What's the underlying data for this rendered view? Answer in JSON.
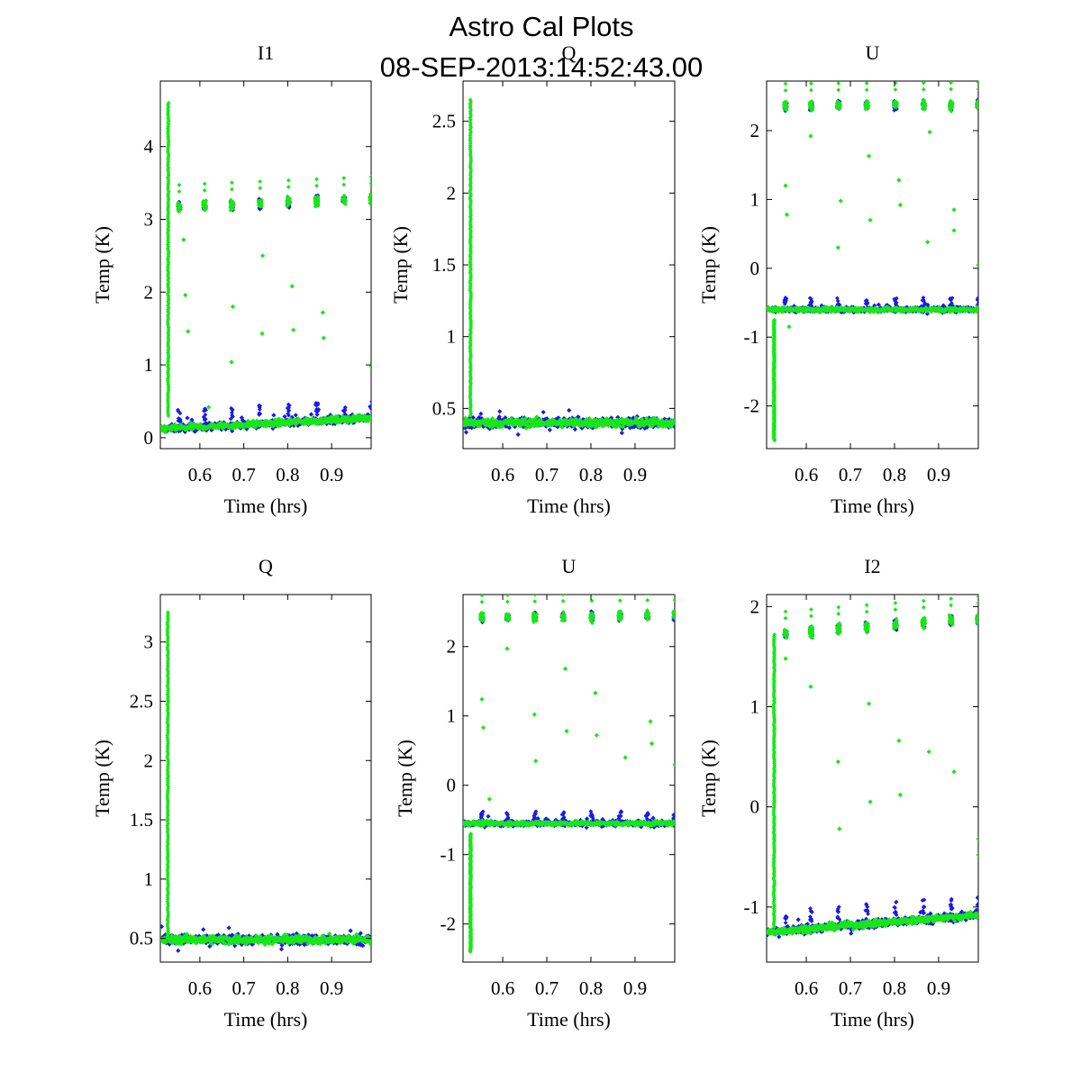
{
  "figure": {
    "title_line1": "Astro Cal Plots",
    "title_line2": "08-SEP-2013:14:52:43.00"
  },
  "colors": {
    "series_a": "#1a1ae6",
    "series_b": "#19e619"
  },
  "chart_data": [
    {
      "type": "scatter",
      "title": "I1",
      "xlabel": "Time (hrs)",
      "ylabel": "Temp (K)",
      "xlim": [
        0.51,
        0.99
      ],
      "ylim": [
        -0.15,
        4.9
      ],
      "xticks": [
        0.6,
        0.7,
        0.8,
        0.9
      ],
      "yticks": [
        0,
        1,
        2,
        3,
        4
      ],
      "grid": false,
      "baseline_start": 0.12,
      "baseline_end": 0.27,
      "noise": 0.05,
      "spike_x": 0.528,
      "spike_range": [
        0.3,
        4.6
      ],
      "cluster_level": 3.17,
      "cluster_end": 3.28,
      "cluster_times": [
        0.553,
        0.611,
        0.673,
        0.737,
        0.802,
        0.866,
        0.928,
        0.99
      ],
      "outlier_points": [
        [
          0.563,
          2.72
        ],
        [
          0.567,
          1.96
        ],
        [
          0.573,
          1.46
        ],
        [
          0.62,
          0.42
        ],
        [
          0.672,
          1.04
        ],
        [
          0.675,
          1.8
        ],
        [
          0.742,
          1.43
        ],
        [
          0.743,
          2.5
        ],
        [
          0.81,
          2.08
        ],
        [
          0.813,
          1.48
        ],
        [
          0.88,
          1.72
        ],
        [
          0.882,
          1.37
        ],
        [
          0.99,
          0.98
        ]
      ]
    },
    {
      "type": "scatter",
      "title": "Q",
      "xlabel": "Time (hrs)",
      "ylabel": "Temp (K)",
      "xlim": [
        0.51,
        0.99
      ],
      "ylim": [
        0.22,
        2.78
      ],
      "xticks": [
        0.6,
        0.7,
        0.8,
        0.9
      ],
      "yticks": [
        0.5,
        1,
        1.5,
        2,
        2.5
      ],
      "grid": false,
      "baseline_start": 0.4,
      "baseline_end": 0.4,
      "noise": 0.035,
      "spike_x": 0.527,
      "spike_range": [
        0.45,
        2.65
      ],
      "cluster_level": null,
      "cluster_end": null,
      "cluster_times": [],
      "outlier_points": []
    },
    {
      "type": "scatter",
      "title": "U",
      "xlabel": "Time (hrs)",
      "ylabel": "Temp (K)",
      "xlim": [
        0.51,
        0.99
      ],
      "ylim": [
        -2.62,
        2.72
      ],
      "xticks": [
        0.6,
        0.7,
        0.8,
        0.9
      ],
      "yticks": [
        -2,
        -1,
        0,
        1,
        2
      ],
      "grid": false,
      "baseline_start": -0.6,
      "baseline_end": -0.6,
      "noise": 0.035,
      "spike_x": 0.527,
      "spike_range": [
        -2.5,
        -0.75
      ],
      "cluster_level": 2.36,
      "cluster_end": 2.38,
      "cluster_times": [
        0.553,
        0.611,
        0.673,
        0.737,
        0.802,
        0.866,
        0.928,
        0.99
      ],
      "outlier_points": [
        [
          0.553,
          1.2
        ],
        [
          0.556,
          0.78
        ],
        [
          0.561,
          -0.85
        ],
        [
          0.61,
          1.92
        ],
        [
          0.672,
          0.3
        ],
        [
          0.678,
          0.98
        ],
        [
          0.742,
          1.63
        ],
        [
          0.745,
          0.7
        ],
        [
          0.81,
          1.28
        ],
        [
          0.813,
          0.92
        ],
        [
          0.875,
          0.38
        ],
        [
          0.88,
          1.98
        ],
        [
          0.935,
          0.55
        ],
        [
          0.935,
          0.85
        ],
        [
          0.99,
          0.05
        ]
      ]
    },
    {
      "type": "scatter",
      "title": "Q",
      "xlabel": "Time (hrs)",
      "ylabel": "Temp (K)",
      "xlim": [
        0.51,
        0.99
      ],
      "ylim": [
        0.3,
        3.4
      ],
      "xticks": [
        0.6,
        0.7,
        0.8,
        0.9
      ],
      "yticks": [
        0.5,
        1,
        1.5,
        2,
        2.5,
        3
      ],
      "grid": false,
      "baseline_start": 0.49,
      "baseline_end": 0.49,
      "noise": 0.04,
      "spike_x": 0.527,
      "spike_range": [
        0.5,
        3.25
      ],
      "cluster_level": null,
      "cluster_end": null,
      "cluster_times": [],
      "outlier_points": []
    },
    {
      "type": "scatter",
      "title": "U",
      "xlabel": "Time (hrs)",
      "ylabel": "Temp (K)",
      "xlim": [
        0.51,
        0.99
      ],
      "ylim": [
        -2.55,
        2.75
      ],
      "xticks": [
        0.6,
        0.7,
        0.8,
        0.9
      ],
      "yticks": [
        -2,
        -1,
        0,
        1,
        2
      ],
      "grid": false,
      "baseline_start": -0.55,
      "baseline_end": -0.55,
      "noise": 0.035,
      "spike_x": 0.527,
      "spike_range": [
        -2.4,
        -0.7
      ],
      "cluster_level": 2.42,
      "cluster_end": 2.45,
      "cluster_times": [
        0.553,
        0.611,
        0.673,
        0.737,
        0.802,
        0.866,
        0.928,
        0.99
      ],
      "outlier_points": [
        [
          0.553,
          1.24
        ],
        [
          0.556,
          0.83
        ],
        [
          0.61,
          1.97
        ],
        [
          0.672,
          1.02
        ],
        [
          0.675,
          0.35
        ],
        [
          0.742,
          1.68
        ],
        [
          0.745,
          0.78
        ],
        [
          0.81,
          1.33
        ],
        [
          0.813,
          0.72
        ],
        [
          0.878,
          0.4
        ],
        [
          0.935,
          0.92
        ],
        [
          0.938,
          0.6
        ],
        [
          0.99,
          0.3
        ],
        [
          0.57,
          -0.2
        ]
      ]
    },
    {
      "type": "scatter",
      "title": "I2",
      "xlabel": "Time (hrs)",
      "ylabel": "Temp (K)",
      "xlim": [
        0.51,
        0.99
      ],
      "ylim": [
        -1.55,
        2.12
      ],
      "xticks": [
        0.6,
        0.7,
        0.8,
        0.9
      ],
      "yticks": [
        -1,
        0,
        1,
        2
      ],
      "grid": false,
      "baseline_start": -1.25,
      "baseline_end": -1.08,
      "noise": 0.04,
      "spike_x": 0.527,
      "spike_range": [
        -1.2,
        1.72
      ],
      "cluster_level": 1.73,
      "cluster_end": 1.88,
      "cluster_times": [
        0.553,
        0.611,
        0.673,
        0.737,
        0.802,
        0.866,
        0.928,
        0.99
      ],
      "outlier_points": [
        [
          0.553,
          1.48
        ],
        [
          0.61,
          1.2
        ],
        [
          0.672,
          0.45
        ],
        [
          0.675,
          -0.22
        ],
        [
          0.742,
          1.03
        ],
        [
          0.745,
          0.05
        ],
        [
          0.81,
          0.66
        ],
        [
          0.813,
          0.12
        ],
        [
          0.878,
          0.55
        ],
        [
          0.935,
          0.35
        ],
        [
          0.99,
          -0.32
        ],
        [
          0.99,
          -0.48
        ]
      ]
    }
  ]
}
